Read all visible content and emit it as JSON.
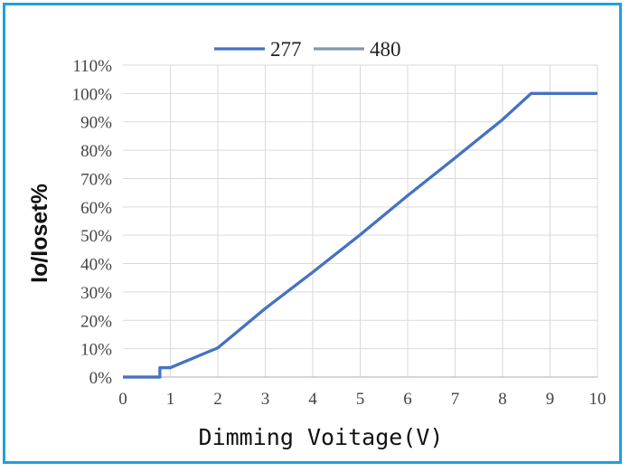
{
  "chart_data": {
    "type": "line",
    "xlabel": "Dimming Voitage(V)",
    "ylabel": "Io/Ioset%",
    "xlim": [
      0,
      10
    ],
    "ylim": [
      0,
      110
    ],
    "x_ticks": [
      "0",
      "1",
      "2",
      "3",
      "4",
      "5",
      "6",
      "7",
      "8",
      "9",
      "10"
    ],
    "y_ticks": [
      "0%",
      "10%",
      "20%",
      "30%",
      "40%",
      "50%",
      "60%",
      "70%",
      "80%",
      "90%",
      "100%",
      "110%"
    ],
    "grid": true,
    "legend_position": "top-center",
    "series": [
      {
        "name": "277",
        "color": "#4472c4",
        "x": [
          0,
          0.78,
          0.78,
          1.0,
          2.0,
          3.0,
          4.0,
          5.0,
          6.0,
          7.0,
          8.0,
          8.6,
          10.0
        ],
        "y": [
          0,
          0,
          3.3,
          3.3,
          10.3,
          24.2,
          37,
          50.2,
          64,
          77.3,
          90.8,
          100,
          100
        ]
      },
      {
        "name": "480",
        "color": "#8497b0",
        "x": [
          0,
          0.78,
          0.78,
          1.0,
          2.0,
          3.0,
          4.0,
          5.0,
          6.0,
          7.0,
          8.0,
          8.6,
          10.0
        ],
        "y": [
          0,
          0,
          3.3,
          3.3,
          10.3,
          24.2,
          37,
          50.2,
          64,
          77.3,
          90.8,
          100,
          100
        ]
      }
    ]
  }
}
